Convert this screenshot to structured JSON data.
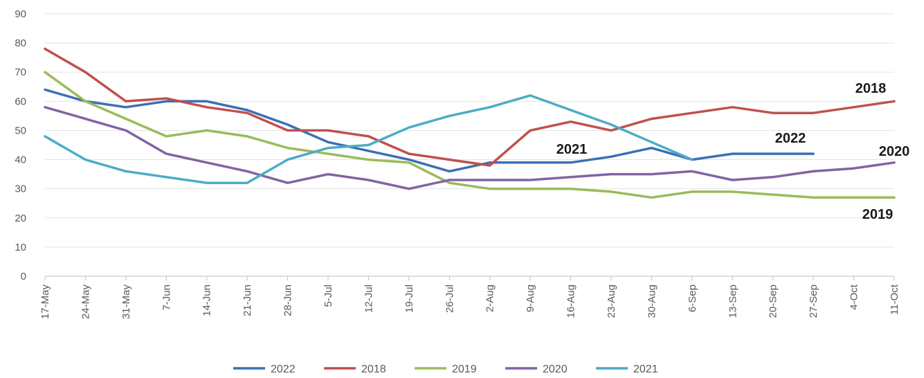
{
  "chart_data": {
    "type": "line",
    "title": "",
    "xlabel": "",
    "ylabel": "",
    "ylim": [
      0,
      90
    ],
    "yticks": [
      0,
      10,
      20,
      30,
      40,
      50,
      60,
      70,
      80,
      90
    ],
    "grid": true,
    "legend_position": "bottom",
    "categories": [
      "17-May",
      "24-May",
      "31-May",
      "7-Jun",
      "14-Jun",
      "21-Jun",
      "28-Jun",
      "5-Jul",
      "12-Jul",
      "19-Jul",
      "26-Jul",
      "2-Aug",
      "9-Aug",
      "16-Aug",
      "23-Aug",
      "30-Aug",
      "6-Sep",
      "13-Sep",
      "20-Sep",
      "27-Sep",
      "4-Oct",
      "11-Oct"
    ],
    "series": [
      {
        "name": "2022",
        "color": "#3b6fb6",
        "values": [
          64,
          60,
          58,
          60,
          60,
          57,
          52,
          46,
          43,
          40,
          36,
          39,
          39,
          39,
          41,
          44,
          40,
          42,
          42,
          42,
          null,
          null
        ]
      },
      {
        "name": "2018",
        "color": "#c0504d",
        "values": [
          78,
          70,
          60,
          61,
          58,
          56,
          50,
          50,
          48,
          42,
          40,
          38,
          50,
          53,
          50,
          54,
          56,
          58,
          56,
          56,
          58,
          60
        ]
      },
      {
        "name": "2019",
        "color": "#9bbb59",
        "values": [
          70,
          60,
          54,
          48,
          50,
          48,
          44,
          42,
          40,
          39,
          32,
          30,
          30,
          30,
          29,
          27,
          29,
          29,
          28,
          27,
          27,
          27
        ]
      },
      {
        "name": "2020",
        "color": "#8064a2",
        "values": [
          58,
          54,
          50,
          42,
          39,
          36,
          32,
          35,
          33,
          30,
          33,
          33,
          33,
          34,
          35,
          35,
          36,
          33,
          34,
          36,
          37,
          39
        ]
      },
      {
        "name": "2021",
        "color": "#4bacc6",
        "values": [
          48,
          40,
          36,
          34,
          32,
          32,
          40,
          44,
          45,
          51,
          55,
          58,
          62,
          57,
          52,
          46,
          40,
          null,
          null,
          null,
          null,
          null
        ]
      }
    ],
    "annotations": [
      {
        "text": "2018",
        "series": "2018"
      },
      {
        "text": "2022",
        "series": "2022"
      },
      {
        "text": "2021",
        "series": "2021"
      },
      {
        "text": "2020",
        "series": "2020"
      },
      {
        "text": "2019",
        "series": "2019"
      }
    ]
  }
}
